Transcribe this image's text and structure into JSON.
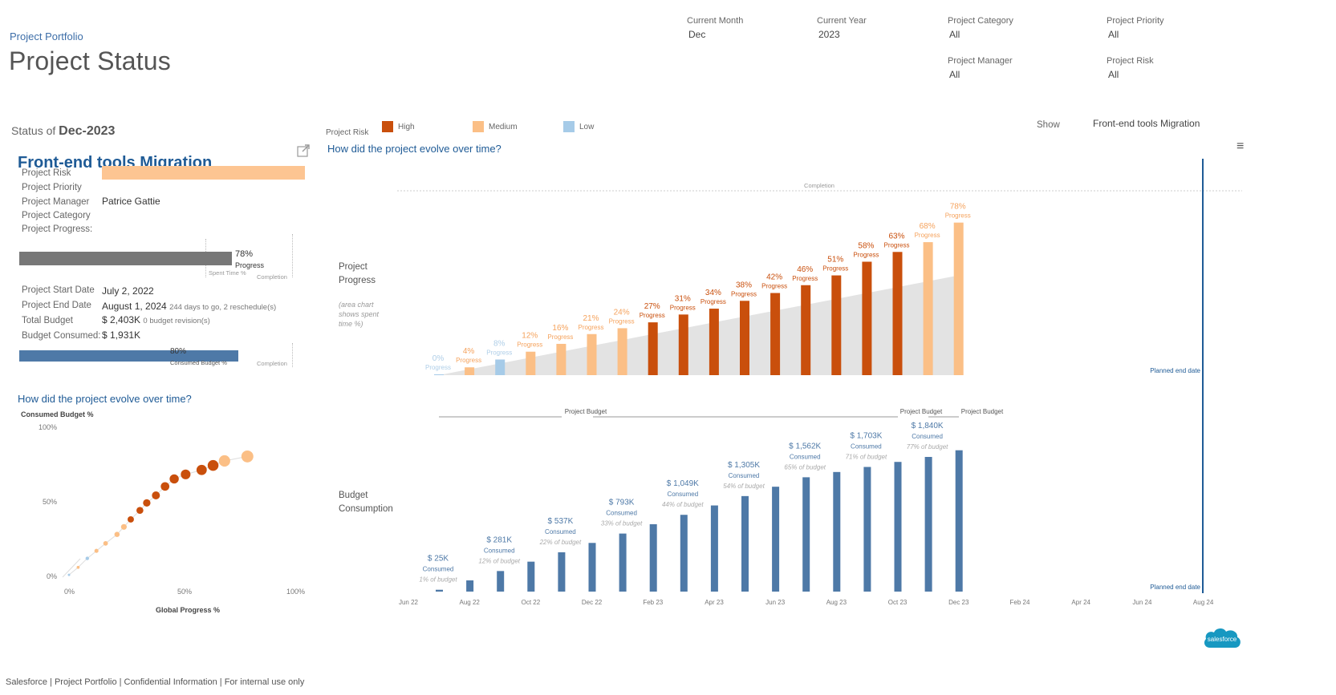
{
  "header": {
    "breadcrumb": "Project Portfolio",
    "title": "Project Status"
  },
  "filters": {
    "current_month": {
      "label": "Current Month",
      "value": "Dec"
    },
    "current_year": {
      "label": "Current Year",
      "value": "2023"
    },
    "project_category": {
      "label": "Project Category",
      "value": "All"
    },
    "project_priority": {
      "label": "Project Priority",
      "value": "All"
    },
    "project_manager": {
      "label": "Project Manager",
      "value": "All"
    },
    "project_risk": {
      "label": "Project Risk",
      "value": "All"
    }
  },
  "status": {
    "prefix": "Status of",
    "period": "Dec-2023"
  },
  "legend": {
    "title": "Project Risk",
    "items": [
      {
        "label": "High",
        "color": "#c94f0c"
      },
      {
        "label": "Medium",
        "color": "#fbbf86"
      },
      {
        "label": "Low",
        "color": "#a6cbe8"
      }
    ]
  },
  "show": {
    "label": "Show",
    "value": "Front-end tools Migration"
  },
  "project": {
    "name": "Front-end tools Migration",
    "labels": {
      "risk": "Project Risk",
      "priority": "Project Priority",
      "manager": "Project Manager",
      "category": "Project Category",
      "progress": "Project Progress:",
      "start": "Project Start Date",
      "end": "Project End Date",
      "budget": "Total Budget",
      "consumed": "Budget Consumed:"
    },
    "manager": "Patrice Gattie",
    "risk_color": "#fdc592",
    "progress_pct": "78%",
    "progress_value": 0.78,
    "progress_word": "Progress",
    "spent_time_label": "Spent Time %",
    "completion_label": "Completion",
    "start_date": "July 2, 2022",
    "end_date": "August 1, 2024",
    "end_note": "244 days to go,   2 reschedule(s)",
    "total_budget": "$ 2,403K",
    "budget_note": "0 budget revision(s)",
    "budget_consumed": "$ 1,931K",
    "consumed_pct": "80%",
    "consumed_value": 0.8,
    "consumed_label": "Consumed Budget %"
  },
  "scatter": {
    "question": "How did the project evolve over time?",
    "ylabel": "Consumed Budget %",
    "xlabel": "Global Progress %",
    "yticks": [
      "100%",
      "50%",
      "0%"
    ],
    "xticks": [
      "0%",
      "50%",
      "100%"
    ]
  },
  "main": {
    "question": "How did the project evolve over time?",
    "completion_label": "Completion",
    "progress_side": "Project\nProgress",
    "progress_note": "(area chart\nshows spent\ntime %)",
    "budget_side": "Budget\nConsumption",
    "project_budget_label": "Project Budget",
    "planned_end": "Planned end date",
    "progress_word": "Progress",
    "consumed_word": "Consumed",
    "of_budget_word": "of budget",
    "x_ticks": [
      "Jun 22",
      "Aug 22",
      "Oct 22",
      "Dec 22",
      "Feb 23",
      "Apr 23",
      "Jun 23",
      "Aug 23",
      "Oct 23",
      "Dec 23",
      "Feb 24",
      "Apr 24",
      "Jun 24",
      "Aug 24"
    ]
  },
  "chart_data": [
    {
      "type": "bar",
      "title": "Project Progress",
      "categories": [
        "Jul 22",
        "Aug 22",
        "Sep 22",
        "Oct 22",
        "Nov 22",
        "Dec 22",
        "Jan 23",
        "Feb 23",
        "Mar 23",
        "Apr 23",
        "May 23",
        "Jun 23",
        "Jul 23",
        "Aug 23",
        "Sep 23",
        "Oct 23",
        "Nov 23",
        "Dec 23"
      ],
      "progress_pct": [
        0,
        4,
        8,
        12,
        16,
        21,
        24,
        27,
        31,
        34,
        38,
        42,
        46,
        51,
        58,
        63,
        68,
        78
      ],
      "risk": [
        "Low",
        "Medium",
        "Low",
        "Medium",
        "Medium",
        "Medium",
        "Medium",
        "High",
        "High",
        "High",
        "High",
        "High",
        "High",
        "High",
        "High",
        "High",
        "Medium",
        "Medium"
      ],
      "spent_time_pct": [
        0,
        3,
        6,
        9,
        12,
        15,
        18,
        21,
        24,
        27,
        30,
        33,
        36,
        39,
        42,
        45,
        48,
        51
      ]
    },
    {
      "type": "bar",
      "title": "Budget Consumption",
      "categories": [
        "Jul 22",
        "Aug 22",
        "Sep 22",
        "Oct 22",
        "Nov 22",
        "Dec 22",
        "Jan 23",
        "Feb 23",
        "Mar 23",
        "Apr 23",
        "May 23",
        "Jun 23",
        "Jul 23",
        "Aug 23",
        "Sep 23",
        "Oct 23",
        "Nov 23",
        "Dec 23"
      ],
      "consumed_k": [
        25,
        153,
        281,
        409,
        537,
        665,
        793,
        921,
        1049,
        1177,
        1305,
        1433,
        1562,
        1634,
        1703,
        1772,
        1840,
        1931
      ],
      "labels": [
        {
          "index": 0,
          "value": "$ 25K",
          "pct": "1%"
        },
        {
          "index": 2,
          "value": "$ 281K",
          "pct": "12%"
        },
        {
          "index": 4,
          "value": "$ 537K",
          "pct": "22%"
        },
        {
          "index": 6,
          "value": "$ 793K",
          "pct": "33%"
        },
        {
          "index": 8,
          "value": "$ 1,049K",
          "pct": "44%"
        },
        {
          "index": 10,
          "value": "$ 1,305K",
          "pct": "54%"
        },
        {
          "index": 12,
          "value": "$ 1,562K",
          "pct": "65%"
        },
        {
          "index": 14,
          "value": "$ 1,703K",
          "pct": "71%"
        },
        {
          "index": 16,
          "value": "$ 1,840K",
          "pct": "77%"
        }
      ],
      "color": "#4e79a7"
    },
    {
      "type": "scatter",
      "title": "",
      "xlabel": "Global Progress %",
      "ylabel": "Consumed Budget %",
      "points": [
        {
          "x": 0,
          "y": 1,
          "risk": "Low"
        },
        {
          "x": 4,
          "y": 6,
          "risk": "Medium"
        },
        {
          "x": 8,
          "y": 12,
          "risk": "Low"
        },
        {
          "x": 12,
          "y": 17,
          "risk": "Medium"
        },
        {
          "x": 16,
          "y": 22,
          "risk": "Medium"
        },
        {
          "x": 21,
          "y": 28,
          "risk": "Medium"
        },
        {
          "x": 24,
          "y": 33,
          "risk": "Medium"
        },
        {
          "x": 27,
          "y": 38,
          "risk": "High"
        },
        {
          "x": 31,
          "y": 44,
          "risk": "High"
        },
        {
          "x": 34,
          "y": 49,
          "risk": "High"
        },
        {
          "x": 38,
          "y": 54,
          "risk": "High"
        },
        {
          "x": 42,
          "y": 60,
          "risk": "High"
        },
        {
          "x": 46,
          "y": 65,
          "risk": "High"
        },
        {
          "x": 51,
          "y": 68,
          "risk": "High"
        },
        {
          "x": 58,
          "y": 71,
          "risk": "High"
        },
        {
          "x": 63,
          "y": 74,
          "risk": "High"
        },
        {
          "x": 68,
          "y": 77,
          "risk": "Medium"
        },
        {
          "x": 78,
          "y": 80,
          "risk": "Medium"
        }
      ],
      "xlim": [
        0,
        100
      ],
      "ylim": [
        0,
        100
      ]
    }
  ],
  "footer": "Salesforce | Project Portfolio | Confidential Information | For internal use only",
  "brand": "salesforce",
  "colors": {
    "accent": "#1f5b96",
    "high": "#c94f0c",
    "medium": "#fbbf86",
    "low": "#a6cbe8",
    "budget": "#4e79a7",
    "bar_gray": "#777777"
  }
}
